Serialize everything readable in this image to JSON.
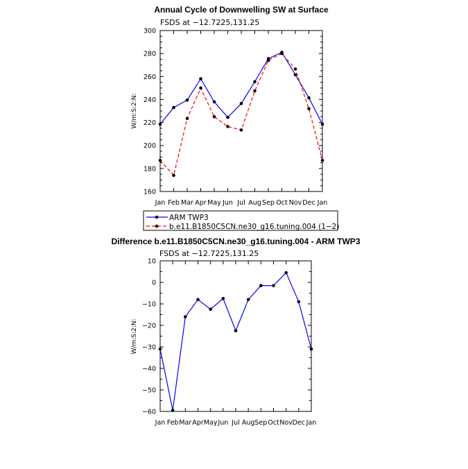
{
  "chart_data": [
    {
      "type": "line",
      "title": "Annual Cycle of Downwelling SW at Surface",
      "subtitle": "FSDS at −12.7225,131.25",
      "ylabel": "W/m:S:2:N:",
      "ylim": [
        160,
        300
      ],
      "yticks": [
        "160",
        "180",
        "200",
        "220",
        "240",
        "260",
        "280",
        "300"
      ],
      "categories": [
        "Jan",
        "Feb",
        "Mar",
        "Apr",
        "May",
        "Jun",
        "Jul",
        "Aug",
        "Sep",
        "Oct",
        "Nov",
        "Dec",
        "Jan"
      ],
      "legend": "below",
      "series": [
        {
          "name": "ARM TWP3",
          "color": "#0000ff",
          "dash": "solid",
          "values": [
            218.5,
            233,
            239.5,
            258,
            238,
            224.5,
            236.5,
            255.5,
            275.5,
            281,
            261.5,
            241.5,
            218.5
          ]
        },
        {
          "name": "b.e11.B1850C5CN.ne30_g16.tuning.004 (1−2)",
          "color": "#ff0000",
          "dash": "dashed",
          "values": [
            187,
            174,
            223.5,
            250,
            225,
            216.5,
            213.5,
            247.5,
            274,
            280,
            266.5,
            232,
            187
          ]
        }
      ]
    },
    {
      "type": "line",
      "title": "Difference b.e11.B1850C5CN.ne30_g16.tuning.004 - ARM TWP3",
      "subtitle": "FSDS at −12.7225,131.25",
      "ylabel": "W/m:S:2:N:",
      "ylim": [
        -60,
        10
      ],
      "yticks": [
        "−60",
        "−50",
        "−40",
        "−30",
        "−20",
        "−10",
        "0",
        "10"
      ],
      "categories": [
        "Jan",
        "Feb",
        "Mar",
        "Apr",
        "May",
        "Jun",
        "Jul",
        "Aug",
        "Sep",
        "Oct",
        "Nov",
        "Dec",
        "Jan"
      ],
      "series": [
        {
          "color": "#0000ff",
          "dash": "solid",
          "values": [
            -31,
            -59.5,
            -16,
            -8,
            -12.5,
            -7.5,
            -22.5,
            -8,
            -1.5,
            -1.5,
            4.5,
            -9,
            -31
          ]
        }
      ]
    }
  ]
}
